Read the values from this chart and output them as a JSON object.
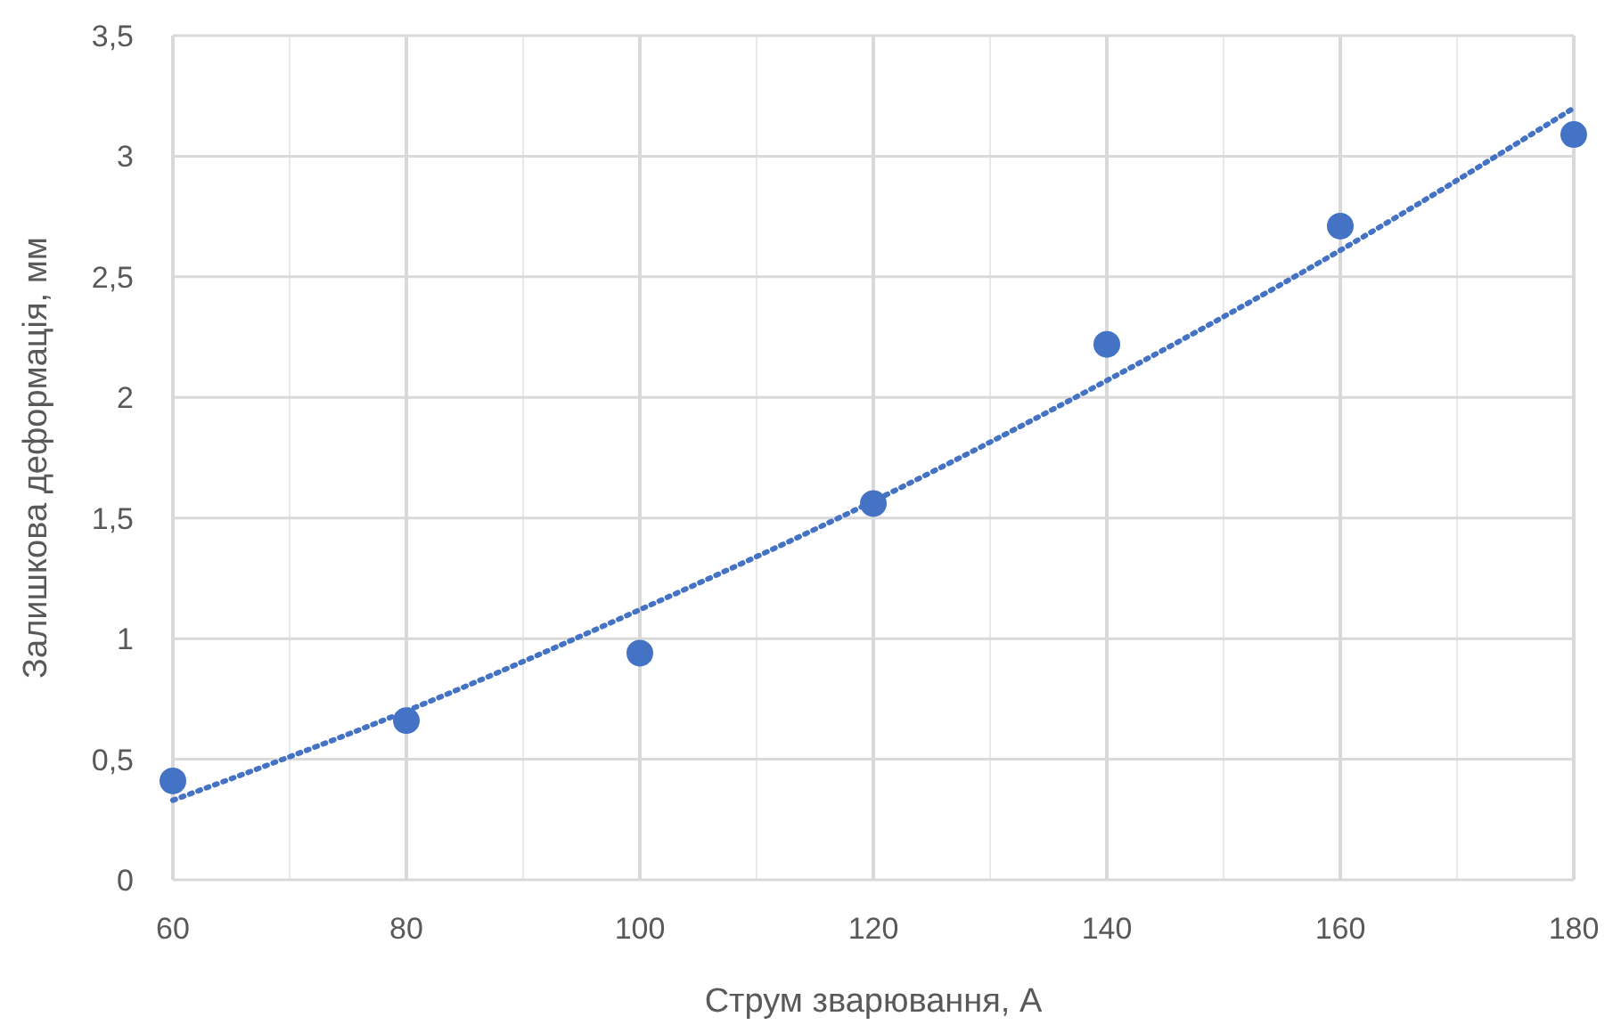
{
  "chart_data": {
    "type": "scatter",
    "xlabel": "Струм зварювання, А",
    "ylabel": "Залишкова деформація, мм",
    "x": [
      60,
      80,
      100,
      120,
      140,
      160,
      180
    ],
    "series": [
      {
        "color": "#4472c4",
        "marker": "circle",
        "values": [
          0.41,
          0.66,
          0.94,
          1.56,
          2.22,
          2.71,
          3.09
        ]
      },
      {
        "type": "line",
        "color": "#4472c4",
        "line_style": "dotted",
        "marker": "none",
        "x": [
          60,
          80,
          100,
          120,
          140,
          160,
          180
        ],
        "values": [
          0.33,
          0.7,
          1.12,
          1.57,
          2.07,
          2.61,
          3.2
        ]
      }
    ],
    "xlim": [
      60,
      180
    ],
    "xticks": [
      60,
      {
        "value": 70,
        "label": null
      },
      80,
      {
        "value": 90,
        "label": null
      },
      100,
      {
        "value": 110,
        "label": null
      },
      120,
      {
        "value": 130,
        "label": null
      },
      140,
      {
        "value": 150,
        "label": null
      },
      160,
      {
        "value": 170,
        "label": null
      },
      180
    ],
    "ylim": [
      0,
      3.5
    ],
    "yticks": [
      0,
      {
        "value": 0.5,
        "label": "0,5"
      },
      1,
      {
        "value": 1.5,
        "label": "1,5"
      },
      2,
      {
        "value": 2.5,
        "label": "2,5"
      },
      3,
      {
        "value": 3.5,
        "label": "3,5"
      }
    ],
    "grid": true
  }
}
